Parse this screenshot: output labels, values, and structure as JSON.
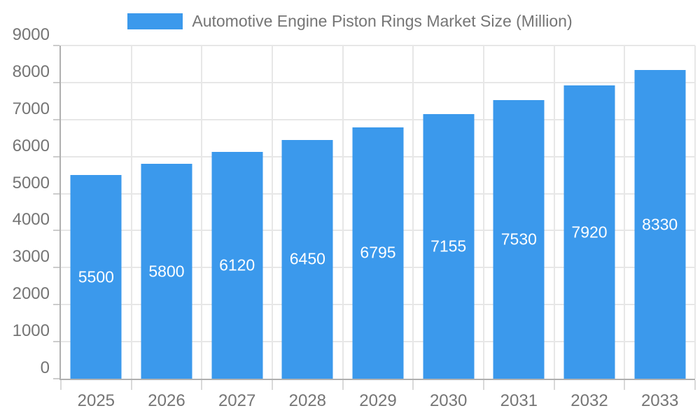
{
  "legend": {
    "label": "Automotive Engine Piston Rings Market Size (Million)"
  },
  "chart_data": {
    "type": "bar",
    "title": "Automotive Engine Piston Rings Market Size (Million)",
    "categories": [
      "2025",
      "2026",
      "2027",
      "2028",
      "2029",
      "2030",
      "2031",
      "2032",
      "2033"
    ],
    "values": [
      5500,
      5800,
      6120,
      6450,
      6795,
      7155,
      7530,
      7920,
      8330
    ],
    "xlabel": "",
    "ylabel": "",
    "ylim": [
      0,
      9000
    ],
    "ytick_step": 1000,
    "ytick_labels": [
      "0",
      "1000",
      "2000",
      "3000",
      "4000",
      "5000",
      "6000",
      "7000",
      "8000",
      "9000"
    ],
    "grid": true,
    "legend_position": "top",
    "colors": {
      "bar": "#3b99ec",
      "value_label": "#ffffff",
      "axis_text": "#757575",
      "axis_line": "#b0b0b0",
      "gridline": "#e7e7e7",
      "background": "#ffffff"
    }
  }
}
